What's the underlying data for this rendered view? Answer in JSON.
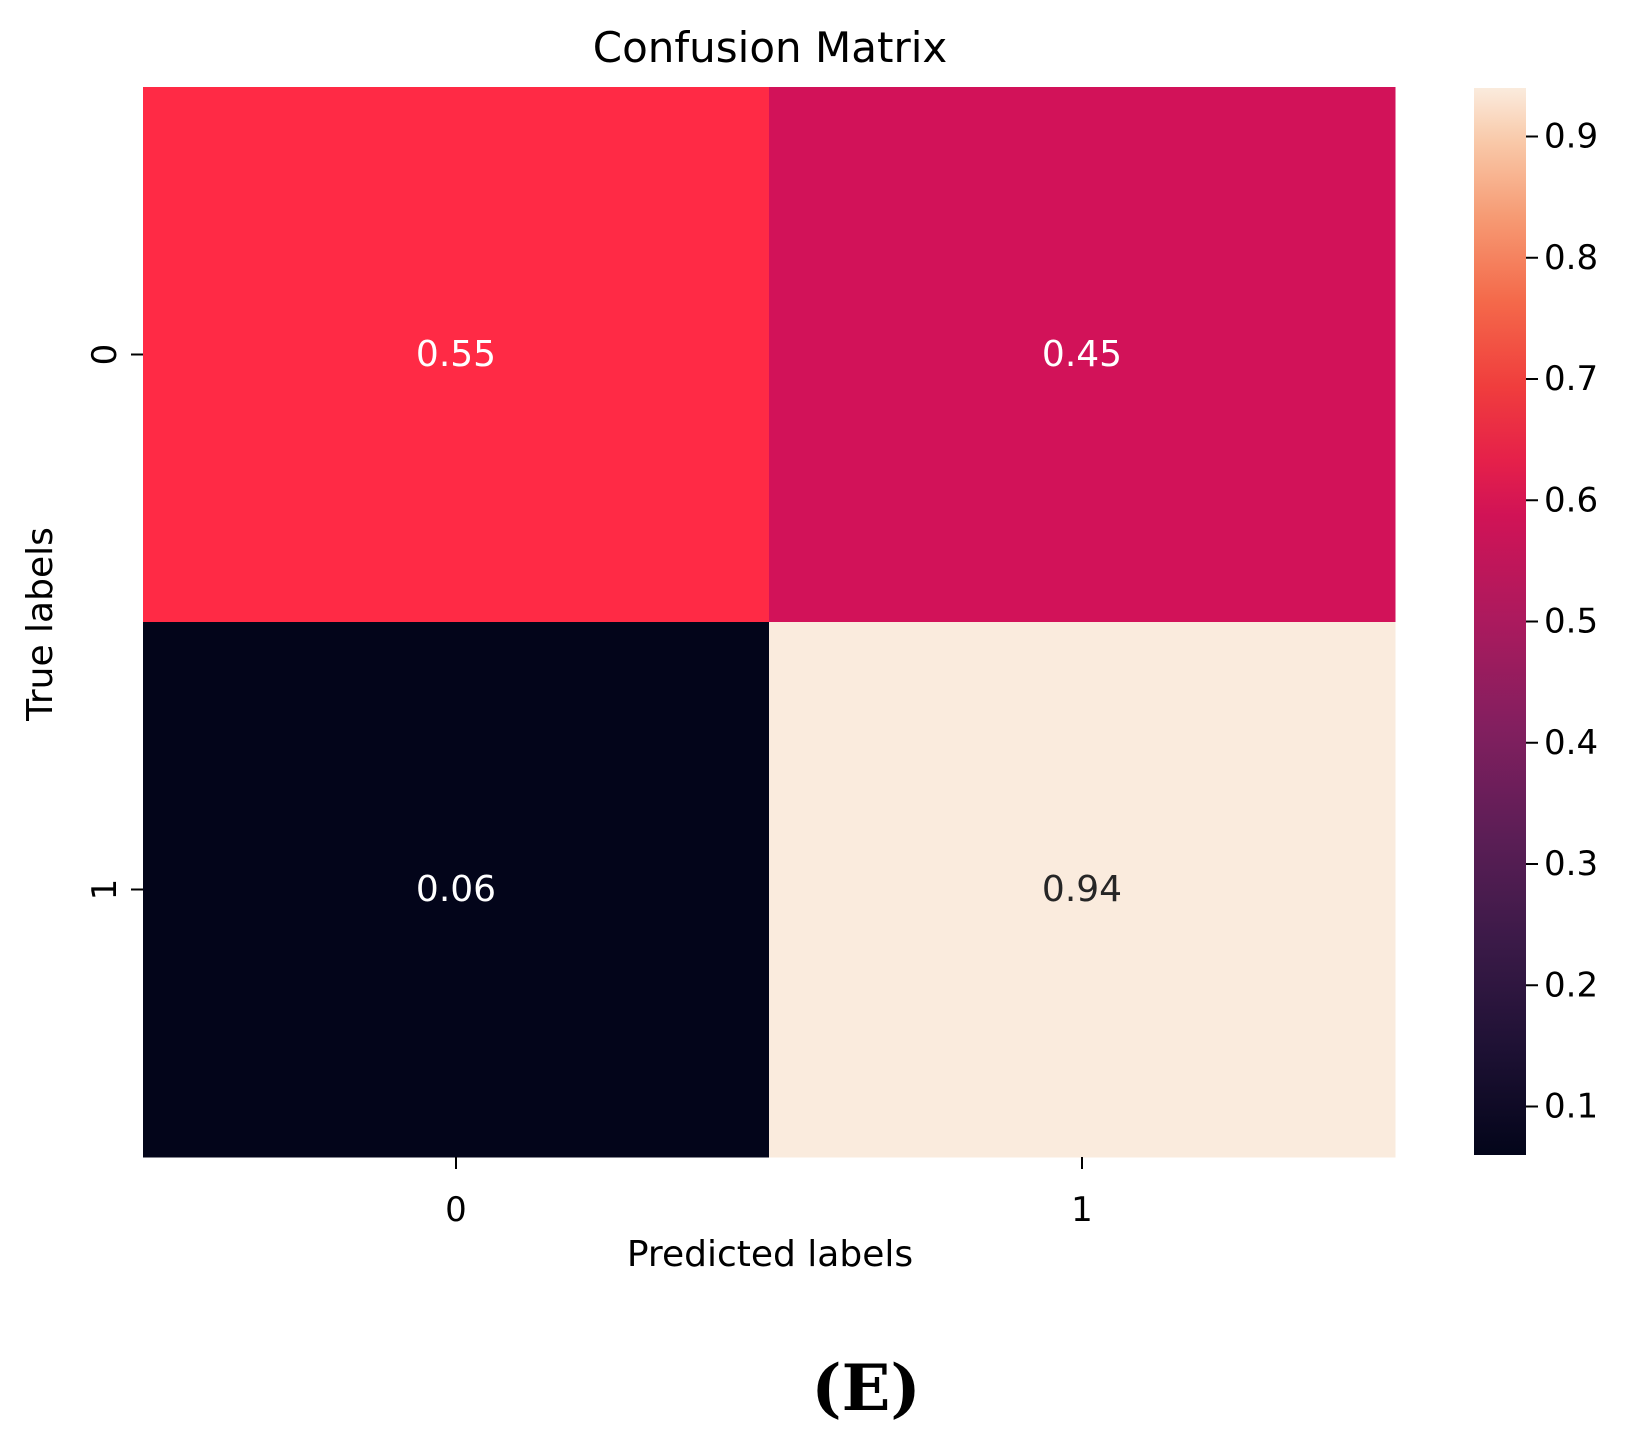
{
  "chart_data": {
    "type": "heatmap",
    "title": "Confusion Matrix",
    "xlabel": "Predicted labels",
    "ylabel": "True labels",
    "x_categories": [
      "0",
      "1"
    ],
    "y_categories": [
      "0",
      "1"
    ],
    "values": [
      [
        0.55,
        0.45
      ],
      [
        0.06,
        0.94
      ]
    ],
    "value_labels": [
      [
        "0.55",
        "0.45"
      ],
      [
        "0.06",
        "0.94"
      ]
    ],
    "colormap": "rocket",
    "colorbar": {
      "range": [
        0.06,
        0.94
      ],
      "ticks": [
        0.1,
        0.2,
        0.3,
        0.4,
        0.5,
        0.6,
        0.7,
        0.8,
        0.9
      ],
      "tick_labels": [
        "0.1",
        "0.2",
        "0.3",
        "0.4",
        "0.5",
        "0.6",
        "0.7",
        "0.8",
        "0.9"
      ]
    },
    "colors": {
      "cell_0_0": "#ff2a45",
      "cell_0_1": "#d21259",
      "cell_1_0": "#03051a",
      "cell_1_1": "#faebdd",
      "text_light": "#ffffff",
      "text_dark": "#262626"
    }
  },
  "panel_label": "(E)"
}
